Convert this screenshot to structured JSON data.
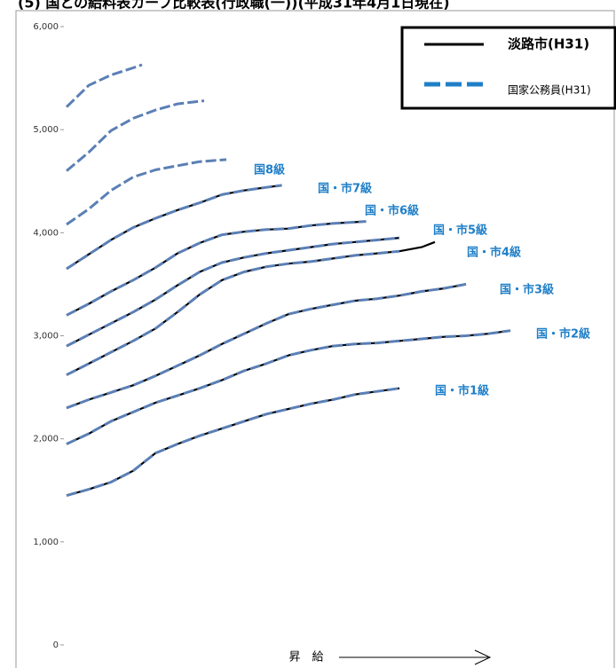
{
  "chart_data": {
    "type": "line",
    "title": "(5) 国との給料表カーブ比較表(行政職(一))(平成31年4月1日現在)",
    "x_label": "昇　給",
    "ylim": [
      0,
      6000
    ],
    "yticks": [
      {
        "value": 0,
        "label": "0"
      },
      {
        "value": 1000,
        "label": "1,000"
      },
      {
        "value": 2000,
        "label": "2,000"
      },
      {
        "value": 3000,
        "label": "3,000"
      },
      {
        "value": 4000,
        "label": "4,000"
      },
      {
        "value": 5000,
        "label": "5,000"
      },
      {
        "value": 6000,
        "label": "6,000"
      }
    ],
    "annotations": [
      "国8級",
      "国・市7級",
      "国・市6級",
      "国・市5級",
      "国・市4級",
      "国・市3級",
      "国・市2級",
      "国・市1級"
    ],
    "series": [
      {
        "name": "淡路市(H31)",
        "color": "#000000",
        "style": "solid",
        "lines": [
          {
            "x": [
              0,
              1,
              2,
              3,
              4,
              5,
              6,
              7,
              8,
              9,
              10,
              11,
              12,
              13,
              14,
              15
            ],
            "values": [
              1450,
              1510,
              1580,
              1690,
              1860,
              1950,
              2030,
              2100,
              2170,
              2240,
              2290,
              2340,
              2380,
              2430,
              2460,
              2490
            ]
          },
          {
            "x": [
              0,
              1,
              2,
              3,
              4,
              5,
              6,
              7,
              8,
              9,
              10,
              11,
              12,
              13,
              14,
              15,
              16,
              17,
              18,
              19,
              20
            ],
            "values": [
              1950,
              2050,
              2170,
              2260,
              2350,
              2420,
              2490,
              2570,
              2660,
              2730,
              2810,
              2860,
              2900,
              2920,
              2930,
              2950,
              2970,
              2990,
              3000,
              3020,
              3050
            ]
          },
          {
            "x": [
              0,
              1,
              2,
              3,
              4,
              5,
              6,
              7,
              8,
              9,
              10,
              11,
              12,
              13,
              14,
              15,
              16,
              17,
              18
            ],
            "values": [
              2300,
              2380,
              2450,
              2520,
              2610,
              2710,
              2810,
              2920,
              3020,
              3120,
              3210,
              3260,
              3300,
              3340,
              3360,
              3390,
              3430,
              3460,
              3500
            ]
          },
          {
            "x": [
              0,
              1,
              2,
              3,
              4,
              5,
              6,
              7,
              8,
              9,
              10,
              11,
              12,
              13,
              14,
              15,
              16,
              16.6
            ],
            "values": [
              2620,
              2730,
              2840,
              2950,
              3070,
              3230,
              3400,
              3540,
              3620,
              3670,
              3700,
              3720,
              3750,
              3780,
              3800,
              3820,
              3860,
              3910
            ]
          },
          {
            "x": [
              0,
              1,
              2,
              3,
              4,
              5,
              6,
              7,
              8,
              9,
              10,
              11,
              12,
              13,
              14,
              15
            ],
            "values": [
              2900,
              3010,
              3120,
              3230,
              3350,
              3490,
              3620,
              3710,
              3760,
              3800,
              3830,
              3860,
              3890,
              3910,
              3930,
              3950
            ]
          },
          {
            "x": [
              0,
              1,
              2,
              3,
              4,
              5,
              6,
              7,
              8,
              9,
              10,
              11,
              12,
              13.5
            ],
            "values": [
              3200,
              3310,
              3430,
              3540,
              3660,
              3800,
              3900,
              3980,
              4010,
              4030,
              4040,
              4070,
              4090,
              4110
            ]
          },
          {
            "x": [
              0,
              1,
              2,
              3,
              4,
              5,
              6,
              7,
              8,
              9,
              9.7
            ],
            "values": [
              3650,
              3790,
              3930,
              4050,
              4140,
              4220,
              4290,
              4370,
              4410,
              4440,
              4460
            ]
          }
        ]
      },
      {
        "name": "国家公務員(H31)",
        "color": "#5b7fb5",
        "style": "dashed",
        "lines": [
          {
            "x": [
              0,
              1,
              2,
              3,
              4,
              5,
              6,
              7,
              8,
              9,
              10,
              11,
              12,
              13,
              14,
              15
            ],
            "values": [
              1450,
              1510,
              1580,
              1690,
              1860,
              1950,
              2030,
              2100,
              2170,
              2240,
              2290,
              2340,
              2380,
              2430,
              2460,
              2490
            ]
          },
          {
            "x": [
              0,
              1,
              2,
              3,
              4,
              5,
              6,
              7,
              8,
              9,
              10,
              11,
              12,
              13,
              14,
              15,
              16,
              17,
              18,
              19,
              20
            ],
            "values": [
              1950,
              2050,
              2170,
              2260,
              2350,
              2420,
              2490,
              2570,
              2660,
              2730,
              2810,
              2860,
              2900,
              2920,
              2930,
              2950,
              2970,
              2990,
              3000,
              3020,
              3050
            ]
          },
          {
            "x": [
              0,
              1,
              2,
              3,
              4,
              5,
              6,
              7,
              8,
              9,
              10,
              11,
              12,
              13,
              14,
              15,
              16,
              17,
              18
            ],
            "values": [
              2300,
              2380,
              2450,
              2520,
              2610,
              2710,
              2810,
              2920,
              3020,
              3120,
              3210,
              3260,
              3300,
              3340,
              3360,
              3390,
              3430,
              3460,
              3500
            ]
          },
          {
            "x": [
              0,
              1,
              2,
              3,
              4,
              5,
              6,
              7,
              8,
              9,
              10,
              11,
              12,
              13,
              14,
              15
            ],
            "values": [
              2620,
              2730,
              2840,
              2950,
              3070,
              3230,
              3400,
              3540,
              3620,
              3670,
              3700,
              3720,
              3750,
              3780,
              3800,
              3820
            ]
          },
          {
            "x": [
              0,
              1,
              2,
              3,
              4,
              5,
              6,
              7,
              8,
              9,
              10,
              11,
              12,
              13,
              14,
              15
            ],
            "values": [
              2900,
              3010,
              3120,
              3230,
              3350,
              3490,
              3620,
              3710,
              3760,
              3800,
              3830,
              3860,
              3890,
              3910,
              3930,
              3950
            ]
          },
          {
            "x": [
              0,
              1,
              2,
              3,
              4,
              5,
              6,
              7,
              8,
              9,
              10,
              11,
              12,
              13.5
            ],
            "values": [
              3200,
              3310,
              3430,
              3540,
              3660,
              3800,
              3900,
              3980,
              4010,
              4030,
              4040,
              4070,
              4090,
              4110
            ]
          },
          {
            "x": [
              0,
              1,
              2,
              3,
              4,
              5,
              6,
              7,
              8,
              9,
              9.7
            ],
            "values": [
              3650,
              3790,
              3930,
              4050,
              4140,
              4220,
              4290,
              4370,
              4410,
              4440,
              4460
            ]
          },
          {
            "x": [
              0,
              1,
              2,
              3,
              4,
              5,
              6,
              7.2
            ],
            "values": [
              4080,
              4230,
              4410,
              4540,
              4610,
              4650,
              4690,
              4710
            ]
          },
          {
            "x": [
              0,
              1,
              2,
              3,
              4,
              5,
              6.2
            ],
            "values": [
              4600,
              4780,
              4990,
              5110,
              5190,
              5250,
              5280
            ]
          },
          {
            "x": [
              0,
              1,
              2,
              3,
              3.4
            ],
            "values": [
              5220,
              5430,
              5530,
              5600,
              5630
            ]
          }
        ]
      }
    ]
  }
}
